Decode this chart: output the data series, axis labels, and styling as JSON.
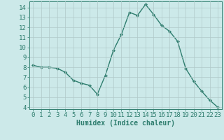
{
  "x": [
    0,
    1,
    2,
    3,
    4,
    5,
    6,
    7,
    8,
    9,
    10,
    11,
    12,
    13,
    14,
    15,
    16,
    17,
    18,
    19,
    20,
    21,
    22,
    23
  ],
  "y": [
    8.2,
    8.0,
    8.0,
    7.9,
    7.5,
    6.7,
    6.4,
    6.2,
    5.3,
    7.2,
    9.7,
    11.3,
    13.5,
    13.2,
    14.3,
    13.3,
    12.2,
    11.6,
    10.6,
    7.9,
    6.6,
    5.6,
    4.7,
    4.0
  ],
  "line_color": "#2e7d6e",
  "marker": "D",
  "marker_size": 2.0,
  "bg_color": "#cce9e9",
  "grid_color": "#b0c8c8",
  "xlabel": "Humidex (Indice chaleur)",
  "xlim": [
    -0.5,
    23.5
  ],
  "ylim": [
    3.8,
    14.6
  ],
  "yticks": [
    4,
    5,
    6,
    7,
    8,
    9,
    10,
    11,
    12,
    13,
    14
  ],
  "xticks": [
    0,
    1,
    2,
    3,
    4,
    5,
    6,
    7,
    8,
    9,
    10,
    11,
    12,
    13,
    14,
    15,
    16,
    17,
    18,
    19,
    20,
    21,
    22,
    23
  ],
  "xlabel_fontsize": 7,
  "tick_fontsize": 6.5,
  "line_width": 1.0,
  "fig_width": 3.2,
  "fig_height": 2.0,
  "dpi": 100
}
